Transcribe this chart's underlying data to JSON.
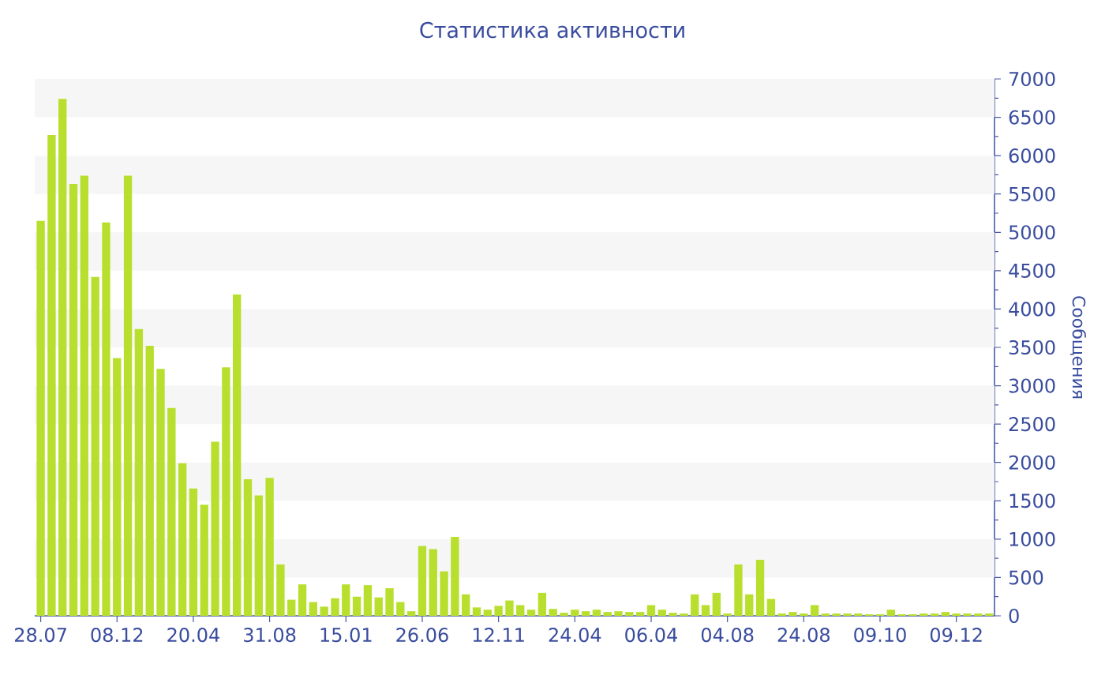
{
  "chart_data": {
    "type": "bar",
    "title": "Статистика активности",
    "ylabel": "Сообщения",
    "categories": [
      "28.07",
      null,
      null,
      null,
      null,
      null,
      null,
      "08.12",
      null,
      null,
      null,
      null,
      null,
      null,
      "20.04",
      null,
      null,
      null,
      null,
      null,
      null,
      "31.08",
      null,
      null,
      null,
      null,
      null,
      null,
      "15.01",
      null,
      null,
      null,
      null,
      null,
      null,
      "26.06",
      null,
      null,
      null,
      null,
      null,
      null,
      "12.11",
      null,
      null,
      null,
      null,
      null,
      null,
      "24.04",
      null,
      null,
      null,
      null,
      null,
      null,
      "06.04",
      null,
      null,
      null,
      null,
      null,
      null,
      "04.08",
      null,
      null,
      null,
      null,
      null,
      null,
      "24.08",
      null,
      null,
      null,
      null,
      null,
      null,
      "09.10",
      null,
      null,
      null,
      null,
      null,
      null,
      "09.12",
      null,
      null,
      null
    ],
    "values": [
      5150,
      6270,
      6740,
      5630,
      5740,
      4420,
      5130,
      3360,
      5740,
      3740,
      3520,
      3220,
      2710,
      1990,
      1660,
      1450,
      2270,
      3240,
      4190,
      1780,
      1570,
      1800,
      670,
      210,
      410,
      180,
      120,
      230,
      410,
      250,
      400,
      240,
      360,
      180,
      60,
      910,
      870,
      580,
      1030,
      280,
      110,
      80,
      130,
      200,
      140,
      80,
      300,
      90,
      40,
      80,
      60,
      80,
      50,
      60,
      50,
      50,
      140,
      80,
      40,
      30,
      280,
      140,
      300,
      30,
      670,
      280,
      730,
      220,
      30,
      50,
      30,
      140,
      30,
      30,
      30,
      30,
      20,
      20,
      80,
      20,
      20,
      30,
      30,
      50,
      30,
      30,
      30,
      30
    ],
    "color": "#b8df2e",
    "ylim": [
      0,
      7000
    ],
    "yticks": [
      0,
      500,
      1000,
      1500,
      2000,
      2500,
      3000,
      3500,
      4000,
      4500,
      5000,
      5500,
      6000,
      6500,
      7000
    ],
    "bands": [
      {
        "axis": "y",
        "from": 500,
        "to": 1000,
        "color": "#f6f6f6"
      },
      {
        "axis": "y",
        "from": 1500,
        "to": 2000,
        "color": "#f6f6f6"
      },
      {
        "axis": "y",
        "from": 2500,
        "to": 3000,
        "color": "#f6f6f6"
      },
      {
        "axis": "y",
        "from": 3500,
        "to": 4000,
        "color": "#f6f6f6"
      },
      {
        "axis": "y",
        "from": 4500,
        "to": 5000,
        "color": "#f6f6f6"
      },
      {
        "axis": "y",
        "from": 5500,
        "to": 6000,
        "color": "#f6f6f6"
      },
      {
        "axis": "y",
        "from": 6500,
        "to": 7000,
        "color": "#f6f6f6"
      }
    ]
  }
}
